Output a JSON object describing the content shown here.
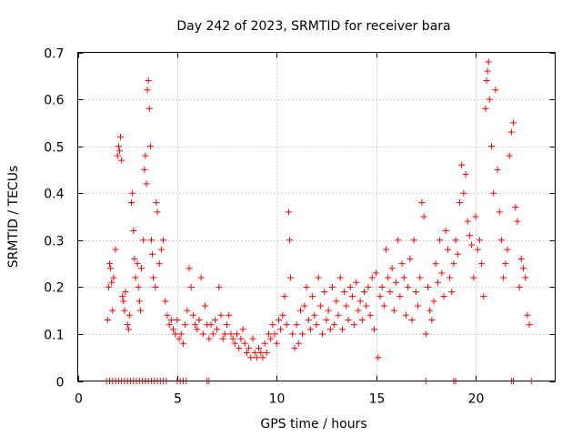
{
  "chart_data": {
    "type": "scatter",
    "title": "Day 242 of 2023, SRMTID for receiver bara",
    "xlabel": "GPS time / hours",
    "ylabel": "SRMTID / TECUs",
    "xlim": [
      0,
      24
    ],
    "ylim": [
      0,
      0.7
    ],
    "x_ticks": [
      0,
      5,
      10,
      15,
      20
    ],
    "y_ticks": [
      0,
      0.1,
      0.2,
      0.3,
      0.4,
      0.5,
      0.6,
      0.7
    ],
    "grid": true,
    "marker": "+",
    "color": "#ff0000",
    "series": [
      {
        "name": "SRMTID",
        "points": [
          [
            1.5,
            0.13
          ],
          [
            1.55,
            0.2
          ],
          [
            1.6,
            0.25
          ],
          [
            1.65,
            0.24
          ],
          [
            1.7,
            0.21
          ],
          [
            1.75,
            0.15
          ],
          [
            1.8,
            0.22
          ],
          [
            1.9,
            0.28
          ],
          [
            2.0,
            0.48
          ],
          [
            2.05,
            0.5
          ],
          [
            2.1,
            0.49
          ],
          [
            2.15,
            0.52
          ],
          [
            2.2,
            0.47
          ],
          [
            2.25,
            0.18
          ],
          [
            2.3,
            0.17
          ],
          [
            2.35,
            0.15
          ],
          [
            2.4,
            0.19
          ],
          [
            2.5,
            0.12
          ],
          [
            2.55,
            0.11
          ],
          [
            2.6,
            0.14
          ],
          [
            2.7,
            0.38
          ],
          [
            2.75,
            0.4
          ],
          [
            2.8,
            0.32
          ],
          [
            2.85,
            0.26
          ],
          [
            2.9,
            0.22
          ],
          [
            3.0,
            0.25
          ],
          [
            3.05,
            0.2
          ],
          [
            3.1,
            0.17
          ],
          [
            3.15,
            0.15
          ],
          [
            3.2,
            0.24
          ],
          [
            3.3,
            0.3
          ],
          [
            3.35,
            0.45
          ],
          [
            3.4,
            0.48
          ],
          [
            3.45,
            0.42
          ],
          [
            3.5,
            0.62
          ],
          [
            3.55,
            0.64
          ],
          [
            3.6,
            0.58
          ],
          [
            3.65,
            0.5
          ],
          [
            3.7,
            0.3
          ],
          [
            3.75,
            0.27
          ],
          [
            3.8,
            0.22
          ],
          [
            3.9,
            0.2
          ],
          [
            3.95,
            0.38
          ],
          [
            4.0,
            0.36
          ],
          [
            4.1,
            0.25
          ],
          [
            4.2,
            0.28
          ],
          [
            4.3,
            0.3
          ],
          [
            4.4,
            0.17
          ],
          [
            4.5,
            0.14
          ],
          [
            4.6,
            0.12
          ],
          [
            4.7,
            0.13
          ],
          [
            4.8,
            0.11
          ],
          [
            4.9,
            0.1
          ],
          [
            5.0,
            0.13
          ],
          [
            5.1,
            0.09
          ],
          [
            5.2,
            0.1
          ],
          [
            5.3,
            0.08
          ],
          [
            5.4,
            0.12
          ],
          [
            5.5,
            0.15
          ],
          [
            5.6,
            0.24
          ],
          [
            5.7,
            0.2
          ],
          [
            5.8,
            0.14
          ],
          [
            5.9,
            0.12
          ],
          [
            6.0,
            0.11
          ],
          [
            6.1,
            0.13
          ],
          [
            6.2,
            0.22
          ],
          [
            6.3,
            0.1
          ],
          [
            6.4,
            0.16
          ],
          [
            6.5,
            0.12
          ],
          [
            6.6,
            0.09
          ],
          [
            6.7,
            0.12
          ],
          [
            6.8,
            0.1
          ],
          [
            6.9,
            0.13
          ],
          [
            7.0,
            0.11
          ],
          [
            7.1,
            0.2
          ],
          [
            7.2,
            0.14
          ],
          [
            7.3,
            0.09
          ],
          [
            7.4,
            0.1
          ],
          [
            7.5,
            0.12
          ],
          [
            7.6,
            0.14
          ],
          [
            7.7,
            0.1
          ],
          [
            7.8,
            0.09
          ],
          [
            7.9,
            0.08
          ],
          [
            8.0,
            0.1
          ],
          [
            8.1,
            0.07
          ],
          [
            8.2,
            0.09
          ],
          [
            8.3,
            0.11
          ],
          [
            8.4,
            0.08
          ],
          [
            8.5,
            0.06
          ],
          [
            8.6,
            0.07
          ],
          [
            8.7,
            0.05
          ],
          [
            8.8,
            0.09
          ],
          [
            8.9,
            0.06
          ],
          [
            9.0,
            0.05
          ],
          [
            9.1,
            0.07
          ],
          [
            9.2,
            0.06
          ],
          [
            9.3,
            0.05
          ],
          [
            9.4,
            0.08
          ],
          [
            9.5,
            0.06
          ],
          [
            9.6,
            0.1
          ],
          [
            9.7,
            0.09
          ],
          [
            9.8,
            0.12
          ],
          [
            9.9,
            0.1
          ],
          [
            10.0,
            0.08
          ],
          [
            10.1,
            0.13
          ],
          [
            10.2,
            0.11
          ],
          [
            10.3,
            0.14
          ],
          [
            10.4,
            0.18
          ],
          [
            10.5,
            0.12
          ],
          [
            10.6,
            0.36
          ],
          [
            10.65,
            0.3
          ],
          [
            10.7,
            0.22
          ],
          [
            10.8,
            0.1
          ],
          [
            10.9,
            0.07
          ],
          [
            11.0,
            0.12
          ],
          [
            11.1,
            0.08
          ],
          [
            11.2,
            0.15
          ],
          [
            11.3,
            0.1
          ],
          [
            11.4,
            0.16
          ],
          [
            11.5,
            0.2
          ],
          [
            11.6,
            0.13
          ],
          [
            11.7,
            0.11
          ],
          [
            11.8,
            0.18
          ],
          [
            11.9,
            0.14
          ],
          [
            12.0,
            0.12
          ],
          [
            12.1,
            0.22
          ],
          [
            12.2,
            0.16
          ],
          [
            12.3,
            0.1
          ],
          [
            12.4,
            0.19
          ],
          [
            12.5,
            0.13
          ],
          [
            12.6,
            0.15
          ],
          [
            12.7,
            0.11
          ],
          [
            12.8,
            0.2
          ],
          [
            12.9,
            0.12
          ],
          [
            13.0,
            0.17
          ],
          [
            13.1,
            0.14
          ],
          [
            13.2,
            0.22
          ],
          [
            13.3,
            0.11
          ],
          [
            13.4,
            0.19
          ],
          [
            13.5,
            0.16
          ],
          [
            13.6,
            0.13
          ],
          [
            13.7,
            0.2
          ],
          [
            13.8,
            0.18
          ],
          [
            13.9,
            0.12
          ],
          [
            14.0,
            0.21
          ],
          [
            14.1,
            0.15
          ],
          [
            14.2,
            0.17
          ],
          [
            14.3,
            0.13
          ],
          [
            14.4,
            0.19
          ],
          [
            14.5,
            0.16
          ],
          [
            14.6,
            0.2
          ],
          [
            14.7,
            0.14
          ],
          [
            14.8,
            0.22
          ],
          [
            14.9,
            0.11
          ],
          [
            15.0,
            0.23
          ],
          [
            15.1,
            0.05
          ],
          [
            15.2,
            0.18
          ],
          [
            15.3,
            0.2
          ],
          [
            15.4,
            0.16
          ],
          [
            15.5,
            0.28
          ],
          [
            15.6,
            0.22
          ],
          [
            15.7,
            0.19
          ],
          [
            15.8,
            0.24
          ],
          [
            15.9,
            0.15
          ],
          [
            16.0,
            0.21
          ],
          [
            16.1,
            0.3
          ],
          [
            16.2,
            0.18
          ],
          [
            16.3,
            0.25
          ],
          [
            16.4,
            0.22
          ],
          [
            16.5,
            0.14
          ],
          [
            16.6,
            0.2
          ],
          [
            16.7,
            0.26
          ],
          [
            16.8,
            0.13
          ],
          [
            16.9,
            0.3
          ],
          [
            17.0,
            0.19
          ],
          [
            17.1,
            0.16
          ],
          [
            17.2,
            0.22
          ],
          [
            17.3,
            0.38
          ],
          [
            17.4,
            0.35
          ],
          [
            17.5,
            0.1
          ],
          [
            17.6,
            0.2
          ],
          [
            17.7,
            0.15
          ],
          [
            17.8,
            0.13
          ],
          [
            17.9,
            0.17
          ],
          [
            18.0,
            0.25
          ],
          [
            18.1,
            0.21
          ],
          [
            18.2,
            0.3
          ],
          [
            18.3,
            0.23
          ],
          [
            18.4,
            0.18
          ],
          [
            18.5,
            0.32
          ],
          [
            18.6,
            0.28
          ],
          [
            18.7,
            0.22
          ],
          [
            18.8,
            0.19
          ],
          [
            18.9,
            0.25
          ],
          [
            19.0,
            0.3
          ],
          [
            19.1,
            0.27
          ],
          [
            19.2,
            0.38
          ],
          [
            19.3,
            0.46
          ],
          [
            19.4,
            0.4
          ],
          [
            19.5,
            0.44
          ],
          [
            19.6,
            0.34
          ],
          [
            19.7,
            0.31
          ],
          [
            19.8,
            0.29
          ],
          [
            19.9,
            0.22
          ],
          [
            20.0,
            0.35
          ],
          [
            20.1,
            0.28
          ],
          [
            20.2,
            0.3
          ],
          [
            20.3,
            0.25
          ],
          [
            20.4,
            0.18
          ],
          [
            20.5,
            0.58
          ],
          [
            20.55,
            0.64
          ],
          [
            20.6,
            0.66
          ],
          [
            20.65,
            0.68
          ],
          [
            20.7,
            0.6
          ],
          [
            20.8,
            0.5
          ],
          [
            20.9,
            0.4
          ],
          [
            21.0,
            0.62
          ],
          [
            21.1,
            0.45
          ],
          [
            21.2,
            0.36
          ],
          [
            21.3,
            0.3
          ],
          [
            21.4,
            0.22
          ],
          [
            21.5,
            0.25
          ],
          [
            21.6,
            0.28
          ],
          [
            21.7,
            0.48
          ],
          [
            21.8,
            0.53
          ],
          [
            21.9,
            0.55
          ],
          [
            22.0,
            0.37
          ],
          [
            22.1,
            0.34
          ],
          [
            22.2,
            0.2
          ],
          [
            22.3,
            0.26
          ],
          [
            22.4,
            0.24
          ],
          [
            22.5,
            0.22
          ],
          [
            22.6,
            0.14
          ],
          [
            22.7,
            0.12
          ],
          [
            1.45,
            0
          ],
          [
            1.6,
            0
          ],
          [
            1.75,
            0
          ],
          [
            1.9,
            0
          ],
          [
            2.05,
            0
          ],
          [
            2.2,
            0
          ],
          [
            2.35,
            0
          ],
          [
            2.5,
            0
          ],
          [
            2.65,
            0
          ],
          [
            2.8,
            0
          ],
          [
            2.95,
            0
          ],
          [
            3.1,
            0
          ],
          [
            3.25,
            0
          ],
          [
            3.4,
            0
          ],
          [
            3.55,
            0
          ],
          [
            3.7,
            0
          ],
          [
            3.85,
            0
          ],
          [
            4.0,
            0
          ],
          [
            4.15,
            0
          ],
          [
            4.3,
            0
          ],
          [
            4.45,
            0
          ],
          [
            5.0,
            0
          ],
          [
            5.15,
            0
          ],
          [
            5.3,
            0
          ],
          [
            5.45,
            0
          ],
          [
            6.5,
            0
          ],
          [
            6.6,
            0
          ],
          [
            17.5,
            0
          ],
          [
            18.9,
            0
          ],
          [
            19.0,
            0
          ],
          [
            21.8,
            0
          ],
          [
            21.9,
            0
          ],
          [
            22.8,
            0
          ]
        ]
      }
    ]
  }
}
